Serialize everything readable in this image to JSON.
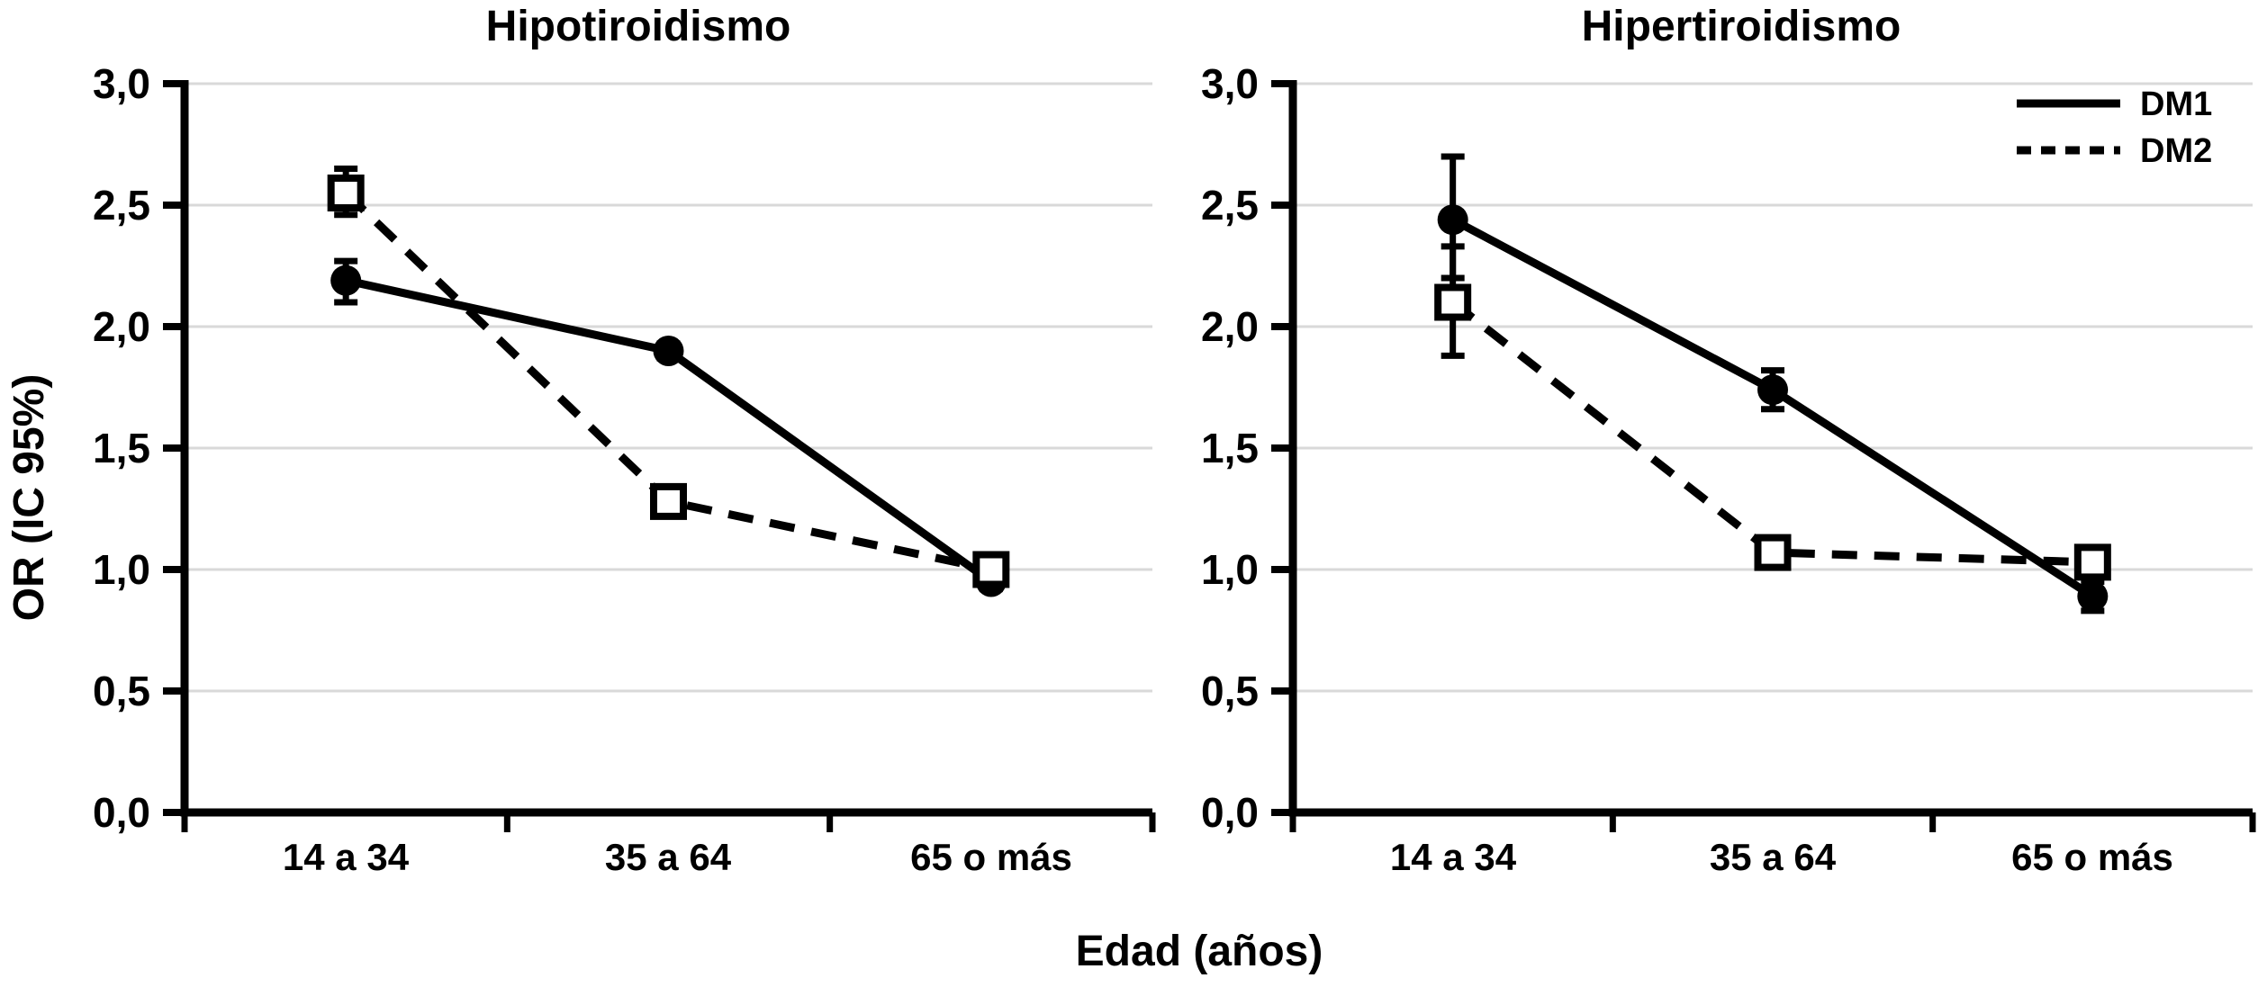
{
  "figure": {
    "background_color": "#ffffff",
    "axis_color": "#000000",
    "grid_color": "#d9d9d9",
    "marker_fill_open": "#ffffff",
    "xlabel": "Edad (años)",
    "ylabel": "OR (IC 95%)",
    "categories": [
      "14 a 34",
      "35 a 64",
      "65 o más"
    ],
    "ytick_labels": [
      "0,0",
      "0,5",
      "1,0",
      "1,5",
      "2,0",
      "2,5",
      "3,0"
    ],
    "ytick_values": [
      0,
      0.5,
      1.0,
      1.5,
      2.0,
      2.5,
      3.0
    ],
    "ylim": [
      0,
      3
    ],
    "grid": true,
    "legend": {
      "position": "top-right",
      "entries": [
        {
          "label": "DM1",
          "line": "solid"
        },
        {
          "label": "DM2",
          "line": "dashed"
        }
      ]
    }
  },
  "chart_data": [
    {
      "type": "line",
      "title": "Hipotiroidismo",
      "categories": [
        "14 a 34",
        "35 a 64",
        "65 o más"
      ],
      "xlabel": "Edad (años)",
      "ylabel": "OR (IC 95%)",
      "ylim": [
        0,
        3
      ],
      "ytick_step": 0.5,
      "grid": true,
      "legend_visible": false,
      "series": [
        {
          "name": "DM1",
          "line": "solid",
          "marker": "filled-circle",
          "values": [
            2.19,
            1.9,
            0.95
          ],
          "ci_low": [
            2.1,
            1.87,
            0.92
          ],
          "ci_high": [
            2.27,
            1.93,
            0.98
          ]
        },
        {
          "name": "DM2",
          "line": "dashed",
          "marker": "open-square",
          "values": [
            2.55,
            1.28,
            1.0
          ],
          "ci_low": [
            2.46,
            1.25,
            0.97
          ],
          "ci_high": [
            2.65,
            1.31,
            1.03
          ]
        }
      ]
    },
    {
      "type": "line",
      "title": "Hipertiroidismo",
      "categories": [
        "14 a 34",
        "35 a 64",
        "65 o más"
      ],
      "xlabel": "Edad (años)",
      "ylabel": "OR (IC 95%)",
      "ylim": [
        0,
        3
      ],
      "ytick_step": 0.5,
      "grid": true,
      "legend_visible": true,
      "series": [
        {
          "name": "DM1",
          "line": "solid",
          "marker": "filled-circle",
          "values": [
            2.44,
            1.74,
            0.89
          ],
          "ci_low": [
            2.2,
            1.66,
            0.83
          ],
          "ci_high": [
            2.7,
            1.82,
            0.95
          ]
        },
        {
          "name": "DM2",
          "line": "dashed",
          "marker": "open-square",
          "values": [
            2.1,
            1.07,
            1.03
          ],
          "ci_low": [
            1.88,
            1.04,
            1.0
          ],
          "ci_high": [
            2.33,
            1.1,
            1.06
          ]
        }
      ]
    }
  ]
}
